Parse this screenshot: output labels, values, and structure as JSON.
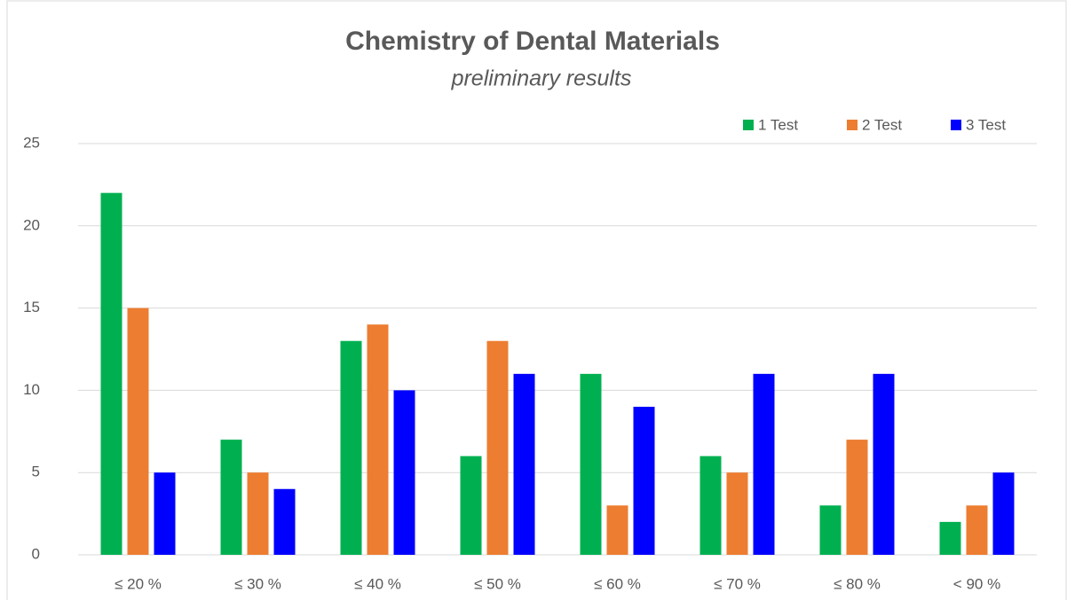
{
  "chart_data": {
    "type": "bar",
    "title": "Chemistry of Dental Materials",
    "subtitle": "preliminary results",
    "categories": [
      "≤ 20 %",
      "≤ 30 %",
      "≤ 40 %",
      "≤ 50 %",
      "≤ 60 %",
      "≤ 70 %",
      "≤ 80 %",
      "< 90 %"
    ],
    "series": [
      {
        "name": "1 Test",
        "color": "#00b050",
        "values": [
          22,
          7,
          13,
          6,
          11,
          6,
          3,
          2
        ]
      },
      {
        "name": "2 Test",
        "color": "#ed7d31",
        "values": [
          15,
          5,
          14,
          13,
          3,
          5,
          7,
          3
        ]
      },
      {
        "name": "3 Test",
        "color": "#0000ff",
        "values": [
          5,
          4,
          10,
          11,
          9,
          11,
          11,
          5
        ]
      }
    ],
    "ylim": [
      0,
      25
    ],
    "yticks": [
      0,
      5,
      10,
      15,
      20,
      25
    ],
    "grid": true,
    "legend": "top-right"
  }
}
